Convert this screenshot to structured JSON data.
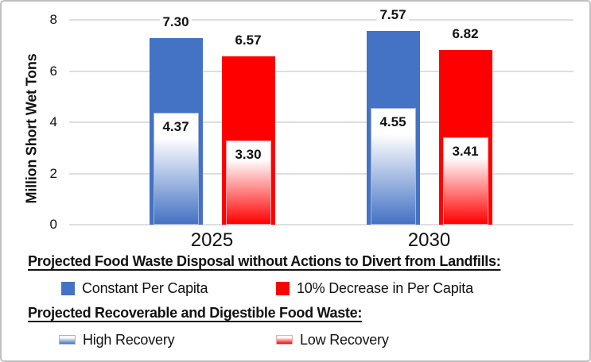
{
  "window": {
    "background": "#ffffff",
    "border_color": "#bfbfbf"
  },
  "chart_data": {
    "type": "bar",
    "title": "",
    "xlabel": "",
    "ylabel": "Million Short Wet Tons",
    "ylim": [
      0,
      8
    ],
    "yticks": [
      0,
      2,
      4,
      6,
      8
    ],
    "grid": true,
    "gridline_color": "#dedede",
    "legend_position": "bottom",
    "categories": [
      "2025",
      "2030"
    ],
    "series": [
      {
        "name": "Constant Per Capita",
        "role": "outer",
        "fill": "solid",
        "color": "#4472C4",
        "values": [
          7.3,
          7.57
        ]
      },
      {
        "name": "10% Decrease in Per Capita",
        "role": "outer",
        "fill": "solid",
        "color": "#FF0000",
        "values": [
          6.57,
          6.82
        ]
      },
      {
        "name": "High Recovery",
        "role": "overlay",
        "overlay_of": "Constant Per Capita",
        "fill": "white-to-color-gradient",
        "color": "#4472C4",
        "border_color": "#9fb4dd",
        "values": [
          4.37,
          4.55
        ]
      },
      {
        "name": "Low Recovery",
        "role": "overlay",
        "overlay_of": "10% Decrease in Per Capita",
        "fill": "white-to-color-gradient",
        "color": "#FF0000",
        "border_color": "#f3a8a8",
        "values": [
          3.3,
          3.41
        ]
      }
    ]
  },
  "legend": {
    "heading_disposal": "Projected Food Waste Disposal without Actions to Divert from Landfills:",
    "items_disposal": [
      {
        "label": "Constant Per Capita",
        "color": "#4472C4",
        "swatch": "solid"
      },
      {
        "label": "10% Decrease in Per Capita",
        "color": "#FF0000",
        "swatch": "solid"
      }
    ],
    "heading_recovery": "Projected Recoverable and Digestible Food Waste:",
    "items_recovery": [
      {
        "label": "High Recovery",
        "color": "#4472C4",
        "swatch": "gradient",
        "border_color": "#9fb4dd"
      },
      {
        "label": "Low Recovery",
        "color": "#FF0000",
        "swatch": "gradient",
        "border_color": "#f3a8a8"
      }
    ]
  }
}
